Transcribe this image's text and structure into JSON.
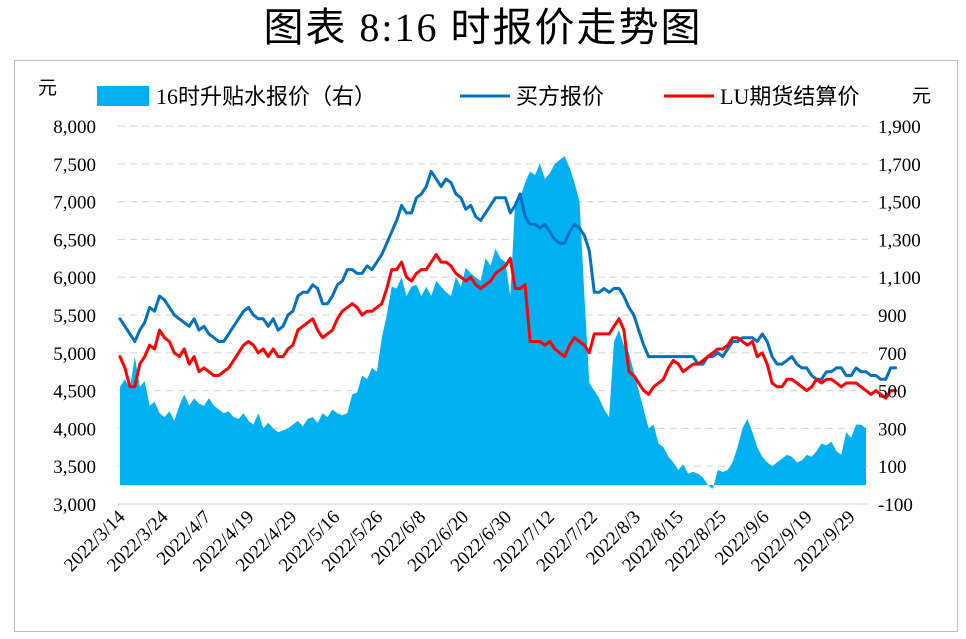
{
  "title": "图表 8:16 时报价走势图",
  "chart_data": {
    "type": "line",
    "left_unit": "元",
    "right_unit": "元",
    "ylim_left": [
      3000,
      8000
    ],
    "yticks_left": [
      "3,000",
      "3,500",
      "4,000",
      "4,500",
      "5,000",
      "5,500",
      "6,000",
      "6,500",
      "7,000",
      "7,500",
      "8,000"
    ],
    "ylim_right": [
      -100,
      1900
    ],
    "yticks_right": [
      "-100",
      "100",
      "300",
      "500",
      "700",
      "900",
      "1,100",
      "1,300",
      "1,500",
      "1,700",
      "1,900"
    ],
    "x_tick_labels": [
      "2022/3/14",
      "2022/3/24",
      "2022/4/7",
      "2022/4/19",
      "2022/4/29",
      "2022/5/16",
      "2022/5/26",
      "2022/6/8",
      "2022/6/20",
      "2022/6/30",
      "2022/7/12",
      "2022/7/22",
      "2022/8/3",
      "2022/8/15",
      "2022/8/25",
      "2022/9/6",
      "2022/9/19",
      "2022/9/29"
    ],
    "grid": "horizontal-dashed",
    "legend_position": "top",
    "series": [
      {
        "name": "16时升贴水报价（右）",
        "type": "area",
        "axis": "right",
        "color": "#00b0f0",
        "values": [
          520,
          560,
          510,
          680,
          520,
          550,
          420,
          440,
          380,
          360,
          390,
          340,
          420,
          480,
          420,
          460,
          430,
          420,
          460,
          420,
          400,
          380,
          390,
          360,
          350,
          380,
          340,
          320,
          380,
          300,
          330,
          300,
          280,
          290,
          300,
          320,
          340,
          310,
          350,
          360,
          330,
          380,
          360,
          400,
          380,
          370,
          380,
          480,
          490,
          580,
          560,
          620,
          600,
          780,
          900,
          1050,
          1040,
          1100,
          1000,
          1050,
          1060,
          1000,
          1050,
          1000,
          1080,
          1050,
          1020,
          1000,
          1100,
          1050,
          1150,
          1120,
          1100,
          1080,
          1200,
          1160,
          1250,
          1200,
          1180,
          1000,
          1500,
          1520,
          1600,
          1660,
          1640,
          1700,
          1620,
          1650,
          1700,
          1720,
          1740,
          1680,
          1600,
          1500,
          1000,
          540,
          500,
          460,
          400,
          360,
          760,
          820,
          740,
          700,
          600,
          500,
          400,
          300,
          320,
          220,
          200,
          150,
          120,
          80,
          110,
          60,
          70,
          60,
          40,
          0,
          -20,
          80,
          70,
          80,
          120,
          200,
          300,
          350,
          280,
          200,
          150,
          120,
          100,
          120,
          140,
          160,
          150,
          120,
          130,
          160,
          150,
          180,
          220,
          210,
          230,
          180,
          160,
          280,
          250,
          320,
          320,
          300
        ],
        "format": "integer"
      },
      {
        "name": "买方报价",
        "type": "line",
        "axis": "left",
        "color": "#0070c0",
        "values": [
          5450,
          5350,
          5250,
          5150,
          5300,
          5400,
          5600,
          5550,
          5750,
          5700,
          5600,
          5500,
          5450,
          5400,
          5350,
          5450,
          5300,
          5350,
          5250,
          5200,
          5150,
          5150,
          5250,
          5350,
          5450,
          5550,
          5600,
          5500,
          5450,
          5450,
          5350,
          5450,
          5300,
          5350,
          5500,
          5550,
          5750,
          5800,
          5800,
          5900,
          5850,
          5650,
          5650,
          5750,
          5900,
          5950,
          6100,
          6100,
          6050,
          6050,
          6150,
          6100,
          6200,
          6300,
          6450,
          6600,
          6750,
          6950,
          6850,
          6850,
          7050,
          7100,
          7200,
          7400,
          7300,
          7200,
          7300,
          7250,
          7100,
          7050,
          6900,
          6950,
          6800,
          6750,
          6850,
          6950,
          7050,
          7050,
          7050,
          6850,
          6950,
          7100,
          6800,
          6700,
          6700,
          6650,
          6700,
          6600,
          6500,
          6450,
          6450,
          6600,
          6700,
          6650,
          6550,
          6350,
          5800,
          5800,
          5850,
          5800,
          5850,
          5850,
          5750,
          5600,
          5500,
          5300,
          5100,
          4950,
          4950,
          4950,
          4950,
          4950,
          4950,
          4950,
          4950,
          4950,
          4950,
          4850,
          4850,
          4950,
          4950,
          5000,
          4950,
          5050,
          5150,
          5150,
          5200,
          5200,
          5200,
          5150,
          5250,
          5150,
          4950,
          4850,
          4850,
          4900,
          4950,
          4850,
          4800,
          4800,
          4700,
          4650,
          4650,
          4750,
          4750,
          4800,
          4800,
          4700,
          4700,
          4800,
          4750,
          4750,
          4700,
          4700,
          4650,
          4650,
          4800,
          4800
        ],
        "format": "integer"
      },
      {
        "name": "LU期货结算价",
        "type": "line",
        "axis": "left",
        "color": "#ff0000",
        "values": [
          4950,
          4800,
          4550,
          4550,
          4850,
          4950,
          5100,
          5050,
          5300,
          5200,
          5150,
          5000,
          4950,
          5050,
          4850,
          4950,
          4750,
          4800,
          4750,
          4700,
          4700,
          4750,
          4800,
          4900,
          5000,
          5100,
          5150,
          5100,
          5000,
          5050,
          4950,
          5050,
          4950,
          4950,
          5050,
          5100,
          5300,
          5350,
          5400,
          5450,
          5300,
          5200,
          5250,
          5300,
          5450,
          5550,
          5600,
          5650,
          5600,
          5500,
          5550,
          5550,
          5600,
          5650,
          5850,
          6100,
          6100,
          6200,
          6000,
          5950,
          6050,
          6100,
          6100,
          6200,
          6300,
          6200,
          6200,
          6150,
          6050,
          6000,
          5950,
          6000,
          5900,
          5850,
          5900,
          5950,
          6050,
          6100,
          6150,
          6250,
          5850,
          5850,
          5900,
          5150,
          5150,
          5150,
          5100,
          5150,
          5050,
          5000,
          4950,
          5100,
          5200,
          5150,
          5100,
          5000,
          5250,
          5250,
          5250,
          5250,
          5350,
          5450,
          5300,
          4750,
          4700,
          4600,
          4500,
          4450,
          4550,
          4600,
          4650,
          4800,
          4900,
          4850,
          4750,
          4800,
          4850,
          4850,
          4900,
          4950,
          5000,
          5050,
          5050,
          5100,
          5200,
          5200,
          5150,
          5100,
          5150,
          4950,
          5000,
          4850,
          4600,
          4550,
          4550,
          4650,
          4650,
          4600,
          4550,
          4500,
          4550,
          4650,
          4600,
          4650,
          4650,
          4600,
          4550,
          4600,
          4600,
          4600,
          4550,
          4500,
          4450,
          4500,
          4450,
          4400,
          4500,
          4500
        ],
        "format": "integer"
      }
    ]
  }
}
